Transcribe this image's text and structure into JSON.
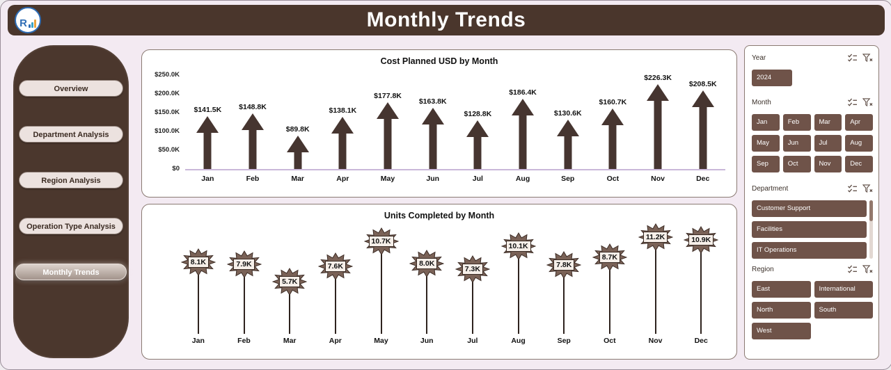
{
  "header": {
    "title": "Monthly Trends",
    "logo_letter": "R"
  },
  "sidebar": {
    "items": [
      {
        "label": "Overview",
        "active": false
      },
      {
        "label": "Department Analysis",
        "active": false
      },
      {
        "label": "Region Analysis",
        "active": false
      },
      {
        "label": "Operation Type Analysis",
        "active": false
      },
      {
        "label": "Monthly Trends",
        "active": true
      }
    ]
  },
  "chart_data": [
    {
      "type": "bar",
      "bar_style": "block-arrow-up",
      "title": "Cost Planned USD by Month",
      "categories": [
        "Jan",
        "Feb",
        "Mar",
        "Apr",
        "May",
        "Jun",
        "Jul",
        "Aug",
        "Sep",
        "Oct",
        "Nov",
        "Dec"
      ],
      "values": [
        141500,
        148800,
        89800,
        138100,
        177800,
        163800,
        128800,
        186400,
        130600,
        160700,
        226300,
        208500
      ],
      "labels": [
        "$141.5K",
        "$148.8K",
        "$89.8K",
        "$138.1K",
        "$177.8K",
        "$163.8K",
        "$128.8K",
        "$186.4K",
        "$130.6K",
        "$160.7K",
        "$226.3K",
        "$208.5K"
      ],
      "xlabel": "",
      "ylabel": "",
      "ylim": [
        0,
        250000
      ],
      "y_ticks": [
        "$250.0K",
        "$200.0K",
        "$150.0K",
        "$100.0K",
        "$50.0K",
        "$0"
      ],
      "legend": false,
      "grid": false
    },
    {
      "type": "scatter",
      "marker": "starburst-lollipop",
      "title": "Units Completed by Month",
      "categories": [
        "Jan",
        "Feb",
        "Mar",
        "Apr",
        "May",
        "Jun",
        "Jul",
        "Aug",
        "Sep",
        "Oct",
        "Nov",
        "Dec"
      ],
      "values": [
        8100,
        7900,
        5700,
        7600,
        10700,
        8000,
        7300,
        10100,
        7800,
        8700,
        11200,
        10900
      ],
      "labels": [
        "8.1K",
        "7.9K",
        "5.7K",
        "7.6K",
        "10.7K",
        "8.0K",
        "7.3K",
        "10.1K",
        "7.8K",
        "8.7K",
        "11.2K",
        "10.9K"
      ],
      "xlabel": "",
      "ylabel": "",
      "ylim": [
        0,
        12000
      ],
      "legend": false,
      "grid": false
    }
  ],
  "slicers": {
    "year": {
      "label": "Year",
      "options": [
        "2024"
      ]
    },
    "month": {
      "label": "Month",
      "options": [
        "Jan",
        "Feb",
        "Mar",
        "Apr",
        "May",
        "Jun",
        "Jul",
        "Aug",
        "Sep",
        "Oct",
        "Nov",
        "Dec"
      ]
    },
    "department": {
      "label": "Department",
      "options": [
        "Customer Support",
        "Facilities",
        "IT Operations"
      ]
    },
    "region": {
      "label": "Region",
      "options": [
        "East",
        "International",
        "North",
        "South",
        "West"
      ]
    }
  },
  "icons": {
    "multi_select": "multi-select-icon",
    "clear_filter": "clear-filter-icon"
  },
  "colors": {
    "page_bg": "#f3eaf2",
    "header_bg": "#4a362c",
    "sidebar_bg": "#4b372d",
    "nav_bg": "#ece2df",
    "nav_text": "#3b2b22",
    "bar_fill": "#463530",
    "axis_line": "#c9b7d9",
    "button_bg": "#6f5349",
    "burst_fill": "#7a6257",
    "badge_bg": "#f6efe9",
    "ink": "#3a2f28"
  }
}
